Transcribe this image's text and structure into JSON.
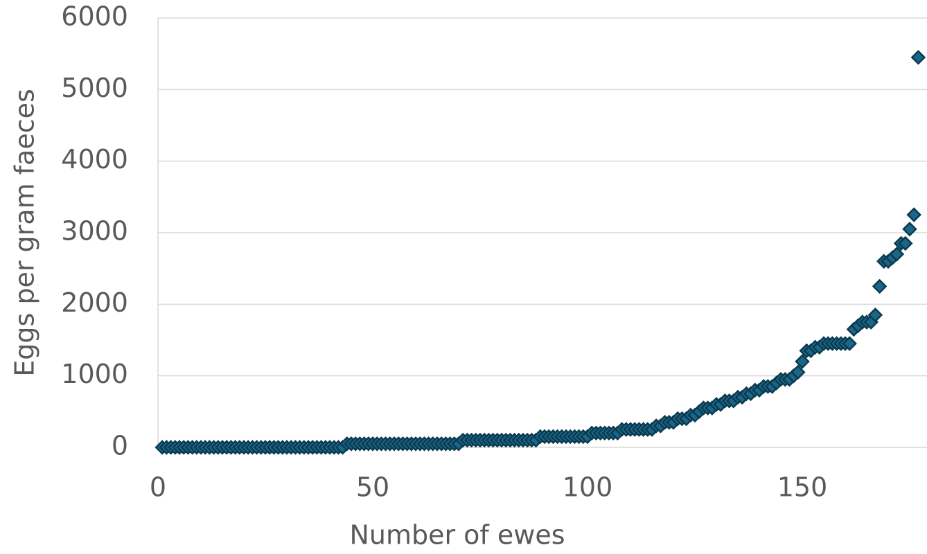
{
  "chart_data": {
    "type": "scatter",
    "x_label": "Number of ewes",
    "y_label": "Eggs per gram faeces",
    "color": "#1b6688",
    "edge_color": "#0b3a4f",
    "grid": true,
    "xlim": [
      0,
      180
    ],
    "xticks": [
      0,
      50,
      100,
      150
    ],
    "ylim": [
      0,
      6000
    ],
    "yticks": [
      0,
      1000,
      2000,
      3000,
      4000,
      5000,
      6000
    ],
    "x": [
      1,
      2,
      3,
      4,
      5,
      6,
      7,
      8,
      9,
      10,
      11,
      12,
      13,
      14,
      15,
      16,
      17,
      18,
      19,
      20,
      21,
      22,
      23,
      24,
      25,
      26,
      27,
      28,
      29,
      30,
      31,
      32,
      33,
      34,
      35,
      36,
      37,
      38,
      39,
      40,
      41,
      42,
      43,
      44,
      45,
      46,
      47,
      48,
      49,
      50,
      51,
      52,
      53,
      54,
      55,
      56,
      57,
      58,
      59,
      60,
      61,
      62,
      63,
      64,
      65,
      66,
      67,
      68,
      69,
      70,
      71,
      72,
      73,
      74,
      75,
      76,
      77,
      78,
      79,
      80,
      81,
      82,
      83,
      84,
      85,
      86,
      87,
      88,
      89,
      90,
      91,
      92,
      93,
      94,
      95,
      96,
      97,
      98,
      99,
      100,
      101,
      102,
      103,
      104,
      105,
      106,
      107,
      108,
      109,
      110,
      111,
      112,
      113,
      114,
      115,
      116,
      117,
      118,
      119,
      120,
      121,
      122,
      123,
      124,
      125,
      126,
      127,
      128,
      129,
      130,
      131,
      132,
      133,
      134,
      135,
      136,
      137,
      138,
      139,
      140,
      141,
      142,
      143,
      144,
      145,
      146,
      147,
      148,
      149,
      150,
      151,
      152,
      153,
      154,
      155,
      156,
      157,
      158,
      159,
      160,
      161,
      162,
      163,
      164,
      165,
      166,
      167,
      168,
      169,
      170,
      171,
      172,
      173,
      174,
      175,
      176,
      177
    ],
    "values": [
      0,
      0,
      0,
      0,
      0,
      0,
      0,
      0,
      0,
      0,
      0,
      0,
      0,
      0,
      0,
      0,
      0,
      0,
      0,
      0,
      0,
      0,
      0,
      0,
      0,
      0,
      0,
      0,
      0,
      0,
      0,
      0,
      0,
      0,
      0,
      0,
      0,
      0,
      0,
      0,
      0,
      0,
      0,
      50,
      50,
      50,
      50,
      50,
      50,
      50,
      50,
      50,
      50,
      50,
      50,
      50,
      50,
      50,
      50,
      50,
      50,
      50,
      50,
      50,
      50,
      50,
      50,
      50,
      50,
      50,
      100,
      100,
      100,
      100,
      100,
      100,
      100,
      100,
      100,
      100,
      100,
      100,
      100,
      100,
      100,
      100,
      100,
      100,
      150,
      150,
      150,
      150,
      150,
      150,
      150,
      150,
      150,
      150,
      150,
      150,
      200,
      200,
      200,
      200,
      200,
      200,
      200,
      250,
      250,
      250,
      250,
      250,
      250,
      250,
      250,
      300,
      300,
      350,
      350,
      350,
      400,
      400,
      400,
      450,
      450,
      500,
      550,
      550,
      550,
      600,
      600,
      650,
      650,
      650,
      700,
      700,
      750,
      750,
      800,
      800,
      850,
      850,
      850,
      900,
      950,
      950,
      950,
      1000,
      1050,
      1200,
      1350,
      1350,
      1400,
      1400,
      1450,
      1450,
      1450,
      1450,
      1450,
      1450,
      1450,
      1650,
      1700,
      1750,
      1750,
      1750,
      1850,
      2250,
      2600,
      2600,
      2650,
      2700,
      2850,
      2850,
      3050,
      3250,
      5450
    ]
  }
}
